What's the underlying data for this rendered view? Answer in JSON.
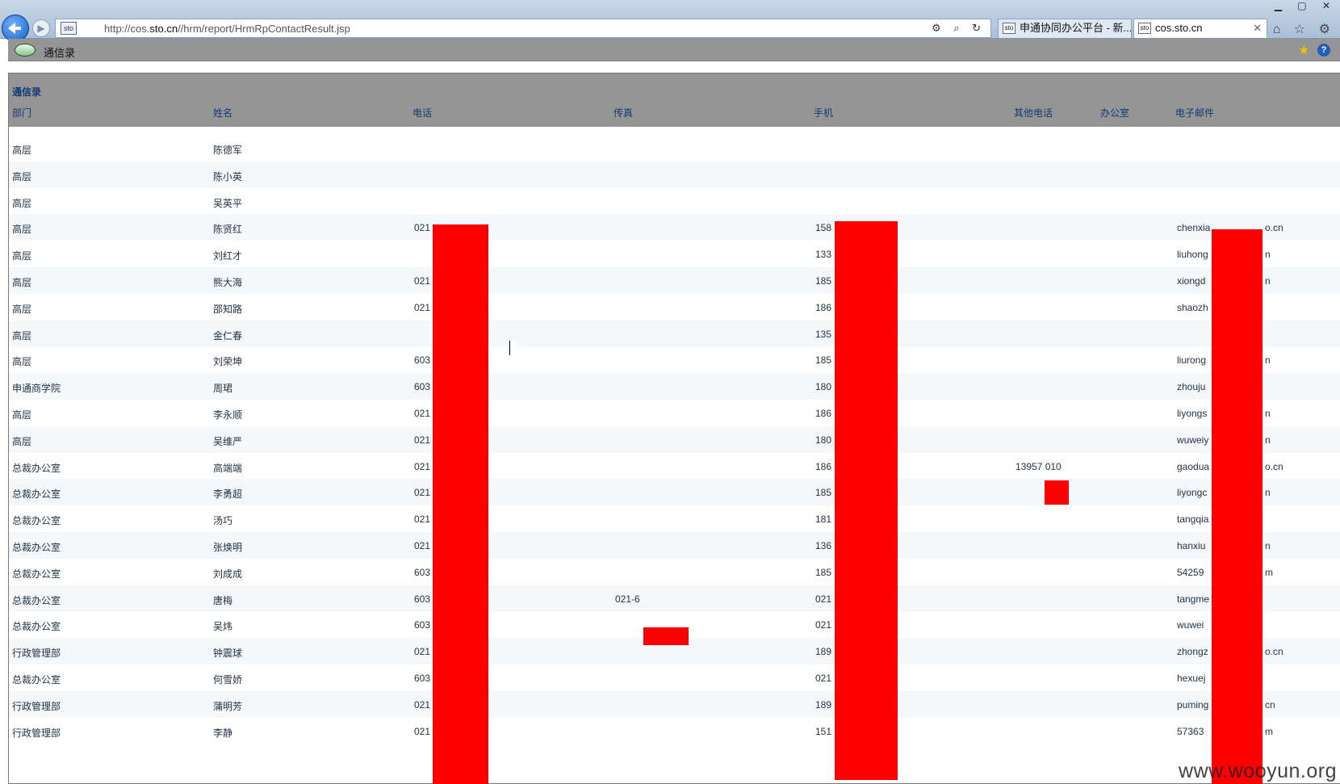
{
  "browser": {
    "url_prefix": "http://cos.",
    "url_domain": "sto.cn",
    "url_suffix": "//hrm/report/HrmRpContactResult.jsp",
    "tabs": [
      {
        "label": "申通协同办公平台 - 新..."
      },
      {
        "label": "cos.sto.cn"
      }
    ]
  },
  "appbar": {
    "title": "通信录"
  },
  "table": {
    "caption": "通信录",
    "headers": {
      "dept": "部门",
      "name": "姓名",
      "phone": "电话",
      "fax": "传真",
      "mobile": "手机",
      "other": "其他电话",
      "office": "办公室",
      "email": "电子邮件"
    },
    "rows": [
      {
        "dept": "高层",
        "name": "陈德军",
        "phone": "",
        "fax": "",
        "mobile": "",
        "other": "",
        "email": ""
      },
      {
        "dept": "高层",
        "name": "陈小英",
        "phone": "",
        "fax": "",
        "mobile": "",
        "other": "",
        "email": ""
      },
      {
        "dept": "高层",
        "name": "吴英平",
        "phone": "",
        "fax": "",
        "mobile": "",
        "other": "",
        "email": ""
      },
      {
        "dept": "高层",
        "name": "陈贤红",
        "phone": "021",
        "fax": "",
        "mobile": "158",
        "other": "",
        "email": "chenxia",
        "email_tail": "o.cn"
      },
      {
        "dept": "高层",
        "name": "刘红才",
        "phone": "",
        "fax": "",
        "mobile": "133",
        "other": "",
        "email": "liuhong",
        "email_tail": "n"
      },
      {
        "dept": "高层",
        "name": "熊大海",
        "phone": "021",
        "fax": "",
        "mobile": "185",
        "other": "",
        "email": "xiongd",
        "email_tail": "n"
      },
      {
        "dept": "高层",
        "name": "邵知路",
        "phone": "021",
        "fax": "",
        "mobile": "186",
        "other": "",
        "email": "shaozh",
        "email_tail": ""
      },
      {
        "dept": "高层",
        "name": "金仁春",
        "phone": "",
        "fax": "",
        "mobile": "135",
        "other": "",
        "email": "",
        "email_tail": ""
      },
      {
        "dept": "高层",
        "name": "刘荣坤",
        "phone": "603",
        "fax": "",
        "mobile": "185",
        "other": "",
        "email": "liurong",
        "email_tail": "n"
      },
      {
        "dept": "申通商学院",
        "name": "周珺",
        "phone": "603",
        "fax": "",
        "mobile": "180",
        "other": "",
        "email": "zhouju",
        "email_tail": ""
      },
      {
        "dept": "高层",
        "name": "李永顺",
        "phone": "021",
        "fax": "",
        "mobile": "186",
        "other": "",
        "email": "liyongs",
        "email_tail": "n"
      },
      {
        "dept": "高层",
        "name": "吴维严",
        "phone": "021",
        "fax": "",
        "mobile": "180",
        "other": "",
        "email": "wuweiy",
        "email_tail": "n"
      },
      {
        "dept": "总裁办公室",
        "name": "高端端",
        "phone": "021",
        "fax": "",
        "mobile": "186",
        "other": "13957   010",
        "email": "gaodua",
        "email_tail": "o.cn"
      },
      {
        "dept": "总裁办公室",
        "name": "李勇超",
        "phone": "021",
        "fax": "",
        "mobile": "185",
        "other": "",
        "email": "liyongc",
        "email_tail": "n"
      },
      {
        "dept": "总裁办公室",
        "name": "汤巧",
        "phone": "021",
        "fax": "",
        "mobile": "181",
        "other": "",
        "email": "tangqia",
        "email_tail": ""
      },
      {
        "dept": "总裁办公室",
        "name": "张焕明",
        "phone": "021",
        "fax": "",
        "mobile": "136",
        "other": "",
        "email": "hanxiu",
        "email_tail": "n"
      },
      {
        "dept": "总裁办公室",
        "name": "刘成成",
        "phone": "603",
        "fax": "",
        "mobile": "185",
        "other": "",
        "email": "54259",
        "email_tail": "m"
      },
      {
        "dept": "总裁办公室",
        "name": "唐梅",
        "phone": "603",
        "fax": "021-6",
        "mobile": "021",
        "other": "",
        "email": "tangme",
        "email_tail": ""
      },
      {
        "dept": "总裁办公室",
        "name": "吴炜",
        "phone": "603",
        "fax": "",
        "mobile": "021",
        "other": "",
        "email": "wuwei",
        "email_tail": ""
      },
      {
        "dept": "行政管理部",
        "name": "钟震球",
        "phone": "021",
        "fax": "",
        "mobile": "189",
        "other": "",
        "email": "zhongz",
        "email_tail": "o.cn"
      },
      {
        "dept": "总裁办公室",
        "name": "何雪娇",
        "phone": "603",
        "fax": "",
        "mobile": "021",
        "other": "",
        "email": "hexuej",
        "email_tail": ""
      },
      {
        "dept": "行政管理部",
        "name": "蒲明芳",
        "phone": "021",
        "fax": "",
        "mobile": "189",
        "other": "",
        "email": "puming",
        "email_tail": "cn"
      },
      {
        "dept": "行政管理部",
        "name": "李静",
        "phone": "021",
        "fax": "",
        "mobile": "151",
        "other": "",
        "email": "57363",
        "email_tail": "m"
      }
    ]
  },
  "watermark": "www.wooyun.org",
  "colors": {
    "header_bg": "#959595",
    "link_blue": "#123a75",
    "redaction": "#ff0000"
  }
}
